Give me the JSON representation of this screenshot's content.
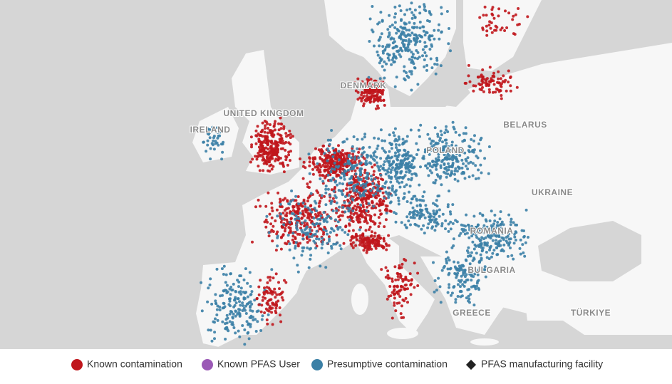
{
  "map": {
    "labels": [
      "IRELAND",
      "UNITED KINGDOM",
      "DENMARK",
      "POLAND",
      "BELARUS",
      "UKRAINE",
      "ROMANIA",
      "BULGARIA",
      "GREECE",
      "TÜRKIYE"
    ],
    "legend": [
      {
        "label": "Known contamination",
        "color": "#c0161c",
        "shape": "circle"
      },
      {
        "label": "Known PFAS User",
        "color": "#9b59b6",
        "shape": "circle"
      },
      {
        "label": "Presumptive contamination",
        "color": "#3b80a6",
        "shape": "circle"
      },
      {
        "label": "PFAS manufacturing facility",
        "color": "#222222",
        "shape": "diamond"
      }
    ]
  }
}
